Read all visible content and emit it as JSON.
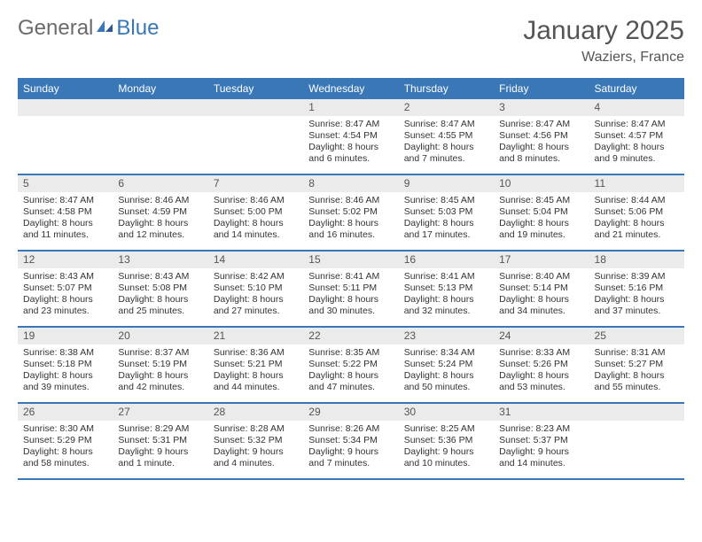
{
  "logo": {
    "part1": "General",
    "part2": "Blue"
  },
  "title": "January 2025",
  "location": "Waziers, France",
  "colors": {
    "header_bg": "#3a77b7",
    "header_text": "#ffffff",
    "dayhead_bg": "#ebebeb",
    "text": "#333333",
    "title_text": "#555555",
    "row_border": "#3a77b7"
  },
  "weekdays": [
    "Sunday",
    "Monday",
    "Tuesday",
    "Wednesday",
    "Thursday",
    "Friday",
    "Saturday"
  ],
  "weeks": [
    [
      {
        "num": "",
        "sunrise": "",
        "sunset": "",
        "daylight1": "",
        "daylight2": ""
      },
      {
        "num": "",
        "sunrise": "",
        "sunset": "",
        "daylight1": "",
        "daylight2": ""
      },
      {
        "num": "",
        "sunrise": "",
        "sunset": "",
        "daylight1": "",
        "daylight2": ""
      },
      {
        "num": "1",
        "sunrise": "Sunrise: 8:47 AM",
        "sunset": "Sunset: 4:54 PM",
        "daylight1": "Daylight: 8 hours",
        "daylight2": "and 6 minutes."
      },
      {
        "num": "2",
        "sunrise": "Sunrise: 8:47 AM",
        "sunset": "Sunset: 4:55 PM",
        "daylight1": "Daylight: 8 hours",
        "daylight2": "and 7 minutes."
      },
      {
        "num": "3",
        "sunrise": "Sunrise: 8:47 AM",
        "sunset": "Sunset: 4:56 PM",
        "daylight1": "Daylight: 8 hours",
        "daylight2": "and 8 minutes."
      },
      {
        "num": "4",
        "sunrise": "Sunrise: 8:47 AM",
        "sunset": "Sunset: 4:57 PM",
        "daylight1": "Daylight: 8 hours",
        "daylight2": "and 9 minutes."
      }
    ],
    [
      {
        "num": "5",
        "sunrise": "Sunrise: 8:47 AM",
        "sunset": "Sunset: 4:58 PM",
        "daylight1": "Daylight: 8 hours",
        "daylight2": "and 11 minutes."
      },
      {
        "num": "6",
        "sunrise": "Sunrise: 8:46 AM",
        "sunset": "Sunset: 4:59 PM",
        "daylight1": "Daylight: 8 hours",
        "daylight2": "and 12 minutes."
      },
      {
        "num": "7",
        "sunrise": "Sunrise: 8:46 AM",
        "sunset": "Sunset: 5:00 PM",
        "daylight1": "Daylight: 8 hours",
        "daylight2": "and 14 minutes."
      },
      {
        "num": "8",
        "sunrise": "Sunrise: 8:46 AM",
        "sunset": "Sunset: 5:02 PM",
        "daylight1": "Daylight: 8 hours",
        "daylight2": "and 16 minutes."
      },
      {
        "num": "9",
        "sunrise": "Sunrise: 8:45 AM",
        "sunset": "Sunset: 5:03 PM",
        "daylight1": "Daylight: 8 hours",
        "daylight2": "and 17 minutes."
      },
      {
        "num": "10",
        "sunrise": "Sunrise: 8:45 AM",
        "sunset": "Sunset: 5:04 PM",
        "daylight1": "Daylight: 8 hours",
        "daylight2": "and 19 minutes."
      },
      {
        "num": "11",
        "sunrise": "Sunrise: 8:44 AM",
        "sunset": "Sunset: 5:06 PM",
        "daylight1": "Daylight: 8 hours",
        "daylight2": "and 21 minutes."
      }
    ],
    [
      {
        "num": "12",
        "sunrise": "Sunrise: 8:43 AM",
        "sunset": "Sunset: 5:07 PM",
        "daylight1": "Daylight: 8 hours",
        "daylight2": "and 23 minutes."
      },
      {
        "num": "13",
        "sunrise": "Sunrise: 8:43 AM",
        "sunset": "Sunset: 5:08 PM",
        "daylight1": "Daylight: 8 hours",
        "daylight2": "and 25 minutes."
      },
      {
        "num": "14",
        "sunrise": "Sunrise: 8:42 AM",
        "sunset": "Sunset: 5:10 PM",
        "daylight1": "Daylight: 8 hours",
        "daylight2": "and 27 minutes."
      },
      {
        "num": "15",
        "sunrise": "Sunrise: 8:41 AM",
        "sunset": "Sunset: 5:11 PM",
        "daylight1": "Daylight: 8 hours",
        "daylight2": "and 30 minutes."
      },
      {
        "num": "16",
        "sunrise": "Sunrise: 8:41 AM",
        "sunset": "Sunset: 5:13 PM",
        "daylight1": "Daylight: 8 hours",
        "daylight2": "and 32 minutes."
      },
      {
        "num": "17",
        "sunrise": "Sunrise: 8:40 AM",
        "sunset": "Sunset: 5:14 PM",
        "daylight1": "Daylight: 8 hours",
        "daylight2": "and 34 minutes."
      },
      {
        "num": "18",
        "sunrise": "Sunrise: 8:39 AM",
        "sunset": "Sunset: 5:16 PM",
        "daylight1": "Daylight: 8 hours",
        "daylight2": "and 37 minutes."
      }
    ],
    [
      {
        "num": "19",
        "sunrise": "Sunrise: 8:38 AM",
        "sunset": "Sunset: 5:18 PM",
        "daylight1": "Daylight: 8 hours",
        "daylight2": "and 39 minutes."
      },
      {
        "num": "20",
        "sunrise": "Sunrise: 8:37 AM",
        "sunset": "Sunset: 5:19 PM",
        "daylight1": "Daylight: 8 hours",
        "daylight2": "and 42 minutes."
      },
      {
        "num": "21",
        "sunrise": "Sunrise: 8:36 AM",
        "sunset": "Sunset: 5:21 PM",
        "daylight1": "Daylight: 8 hours",
        "daylight2": "and 44 minutes."
      },
      {
        "num": "22",
        "sunrise": "Sunrise: 8:35 AM",
        "sunset": "Sunset: 5:22 PM",
        "daylight1": "Daylight: 8 hours",
        "daylight2": "and 47 minutes."
      },
      {
        "num": "23",
        "sunrise": "Sunrise: 8:34 AM",
        "sunset": "Sunset: 5:24 PM",
        "daylight1": "Daylight: 8 hours",
        "daylight2": "and 50 minutes."
      },
      {
        "num": "24",
        "sunrise": "Sunrise: 8:33 AM",
        "sunset": "Sunset: 5:26 PM",
        "daylight1": "Daylight: 8 hours",
        "daylight2": "and 53 minutes."
      },
      {
        "num": "25",
        "sunrise": "Sunrise: 8:31 AM",
        "sunset": "Sunset: 5:27 PM",
        "daylight1": "Daylight: 8 hours",
        "daylight2": "and 55 minutes."
      }
    ],
    [
      {
        "num": "26",
        "sunrise": "Sunrise: 8:30 AM",
        "sunset": "Sunset: 5:29 PM",
        "daylight1": "Daylight: 8 hours",
        "daylight2": "and 58 minutes."
      },
      {
        "num": "27",
        "sunrise": "Sunrise: 8:29 AM",
        "sunset": "Sunset: 5:31 PM",
        "daylight1": "Daylight: 9 hours",
        "daylight2": "and 1 minute."
      },
      {
        "num": "28",
        "sunrise": "Sunrise: 8:28 AM",
        "sunset": "Sunset: 5:32 PM",
        "daylight1": "Daylight: 9 hours",
        "daylight2": "and 4 minutes."
      },
      {
        "num": "29",
        "sunrise": "Sunrise: 8:26 AM",
        "sunset": "Sunset: 5:34 PM",
        "daylight1": "Daylight: 9 hours",
        "daylight2": "and 7 minutes."
      },
      {
        "num": "30",
        "sunrise": "Sunrise: 8:25 AM",
        "sunset": "Sunset: 5:36 PM",
        "daylight1": "Daylight: 9 hours",
        "daylight2": "and 10 minutes."
      },
      {
        "num": "31",
        "sunrise": "Sunrise: 8:23 AM",
        "sunset": "Sunset: 5:37 PM",
        "daylight1": "Daylight: 9 hours",
        "daylight2": "and 14 minutes."
      },
      {
        "num": "",
        "sunrise": "",
        "sunset": "",
        "daylight1": "",
        "daylight2": ""
      }
    ]
  ]
}
